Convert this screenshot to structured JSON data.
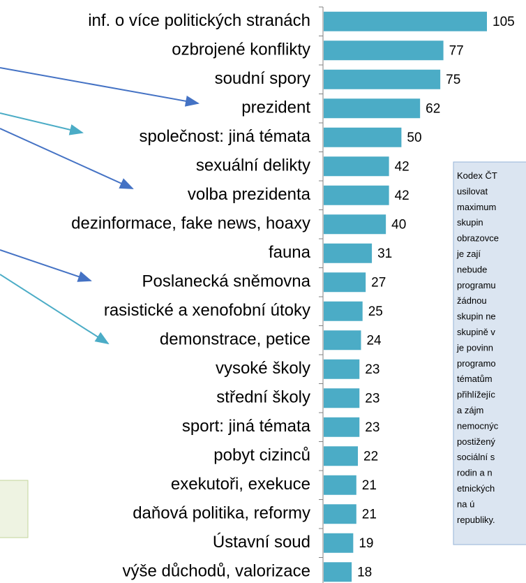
{
  "chart_data": {
    "type": "bar",
    "orientation": "horizontal",
    "categories": [
      "inf. o více politických stranách",
      "ozbrojené konflikty",
      "soudní spory",
      "prezident",
      "společnost: jiná témata",
      "sexuální delikty",
      "volba prezidenta",
      "dezinformace, fake news, hoaxy",
      "fauna",
      "Poslanecká sněmovna",
      "rasistické a xenofobní útoky",
      "demonstrace, petice",
      "vysoké školy",
      "střední školy",
      "sport: jiná témata",
      "pobyt cizinců",
      "exekutoři, exekuce",
      "daňová politika, reformy",
      "Ústavní soud",
      "výše důchodů, valorizace"
    ],
    "values": [
      105,
      77,
      75,
      62,
      50,
      42,
      42,
      40,
      31,
      27,
      25,
      24,
      23,
      23,
      23,
      22,
      21,
      21,
      19,
      18
    ],
    "color": "#4bacc6"
  },
  "note_box": {
    "lines": [
      "Kodex ČT",
      "usilovat",
      "maximum",
      "skupin",
      "obrazovce",
      "je zají",
      "nebude",
      "programu",
      "žádnou",
      "skupin ne",
      "skupině v",
      "je povinn",
      "programo",
      "tématům",
      "přihlížejíc",
      "a zájm",
      "nemocnýc",
      "postižený",
      "sociální s",
      "rodin a n",
      "etnických",
      "na ú",
      "republiky."
    ]
  }
}
